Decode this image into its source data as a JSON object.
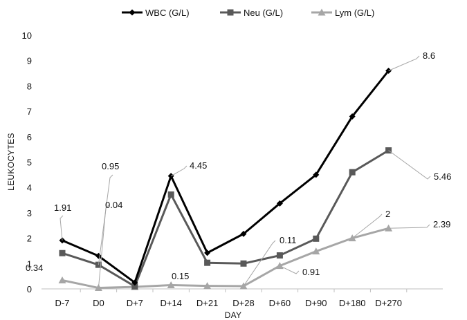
{
  "chart_data": {
    "type": "line",
    "title": "",
    "xlabel": "DAY",
    "ylabel": "LEUKOCYTES",
    "ylim": [
      0,
      10
    ],
    "yticks": [
      0,
      1,
      2,
      3,
      4,
      5,
      6,
      7,
      8,
      9,
      10
    ],
    "grid": false,
    "legend_position": "top",
    "categories": [
      "D-7",
      "D0",
      "D+7",
      "D+14",
      "D+21",
      "D+28",
      "D+60",
      "D+90",
      "D+180",
      "D+270"
    ],
    "series": [
      {
        "name": "WBC (G/L)",
        "marker": "diamond",
        "color": "#000000",
        "values": [
          1.91,
          1.3,
          0.25,
          4.45,
          1.42,
          2.17,
          3.37,
          4.5,
          6.8,
          8.6
        ]
      },
      {
        "name": "Neu (G/L)",
        "marker": "square",
        "color": "#595959",
        "values": [
          1.41,
          0.95,
          0.1,
          3.72,
          1.03,
          1.0,
          1.32,
          1.98,
          4.6,
          5.46
        ]
      },
      {
        "name": "Lym (G/L)",
        "marker": "triangle",
        "color": "#a6a6a6",
        "values": [
          0.34,
          0.04,
          0.08,
          0.15,
          0.12,
          0.11,
          0.91,
          1.48,
          2.0,
          2.39
        ]
      }
    ],
    "annotations": [
      {
        "text": "1.91",
        "series": 0,
        "index": 0
      },
      {
        "text": "0.95",
        "series": 1,
        "index": 1
      },
      {
        "text": "0.04",
        "series": 2,
        "index": 1
      },
      {
        "text": "0.34",
        "series": 2,
        "index": 0
      },
      {
        "text": "4.45",
        "series": 0,
        "index": 3
      },
      {
        "text": "0.15",
        "series": 2,
        "index": 3
      },
      {
        "text": "0.11",
        "series": 2,
        "index": 5
      },
      {
        "text": "0.91",
        "series": 2,
        "index": 6
      },
      {
        "text": "2",
        "series": 2,
        "index": 8
      },
      {
        "text": "5.46",
        "series": 1,
        "index": 9
      },
      {
        "text": "8.6",
        "series": 0,
        "index": 9
      },
      {
        "text": "2.39",
        "series": 2,
        "index": 9
      }
    ]
  }
}
